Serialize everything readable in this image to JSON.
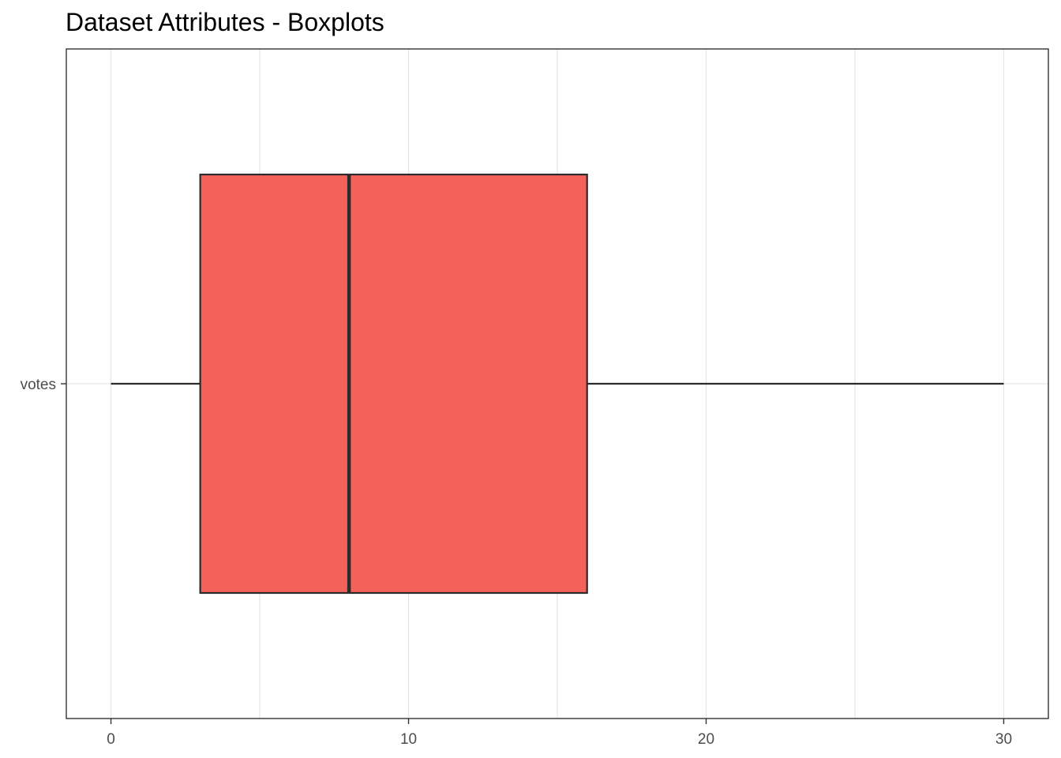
{
  "chart_data": {
    "type": "boxplot",
    "title": "Dataset Attributes - Boxplots",
    "xlabel": "",
    "ylabel": "",
    "orientation": "horizontal",
    "xlim": [
      -1.5,
      31.5
    ],
    "x_ticks": [
      0,
      10,
      20,
      30
    ],
    "x_tick_labels": [
      "0",
      "10",
      "20",
      "30"
    ],
    "categories": [
      "votes"
    ],
    "series": [
      {
        "category": "votes",
        "min": 0,
        "q1": 3,
        "median": 8,
        "q3": 16,
        "max": 30
      }
    ],
    "grid": true,
    "colors": {
      "box_fill": "#f3615b",
      "box_stroke": "#2b2b2b",
      "grid": "#e5e5e5",
      "panel_border": "#333333",
      "tick_text": "#4d4d4d"
    }
  }
}
